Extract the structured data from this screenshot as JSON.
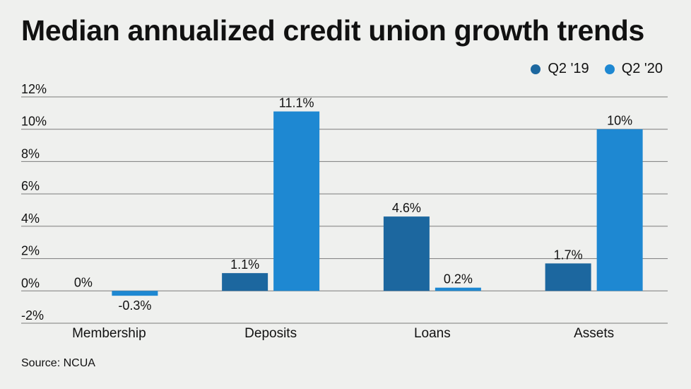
{
  "title": "Median annualized credit union growth trends",
  "source": "Source: NCUA",
  "colors": {
    "q2_19": "#1c679f",
    "q2_20": "#1e88d2"
  },
  "chart_data": {
    "type": "bar",
    "title": "Median annualized credit union growth trends",
    "categories": [
      "Membership",
      "Deposits",
      "Loans",
      "Assets"
    ],
    "series": [
      {
        "name": "Q2 '19",
        "values": [
          0,
          1.1,
          4.6,
          1.7
        ],
        "labels": [
          "0%",
          "1.1%",
          "4.6%",
          "1.7%"
        ]
      },
      {
        "name": "Q2 '20",
        "values": [
          -0.3,
          11.1,
          0.2,
          10
        ],
        "labels": [
          "-0.3%",
          "11.1%",
          "0.2%",
          "10%"
        ]
      }
    ],
    "ylim": [
      -2,
      12
    ],
    "yticks": [
      12,
      10,
      8,
      6,
      4,
      2,
      0,
      -2
    ],
    "ytick_labels": [
      "12%",
      "10%",
      "8%",
      "6%",
      "4%",
      "2%",
      "0%",
      "-2%"
    ],
    "legend": "top-right",
    "grid": true
  }
}
